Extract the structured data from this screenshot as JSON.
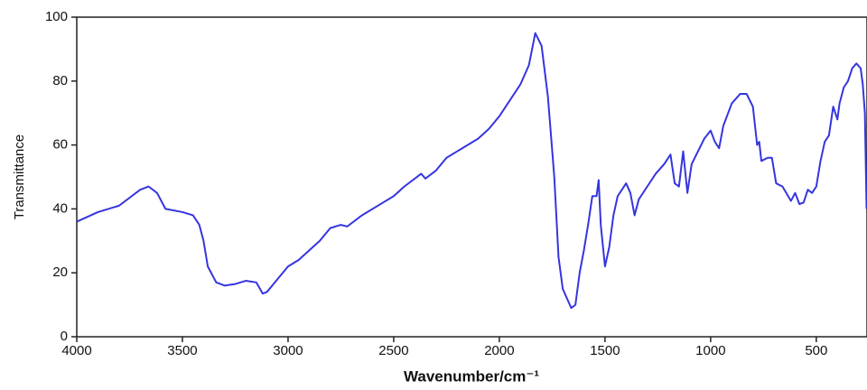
{
  "chart_data": {
    "type": "line",
    "xlabel": "Wavenumber/cm⁻¹",
    "ylabel": "Transmittance",
    "xlim": [
      4000,
      260
    ],
    "xticks": [
      4000,
      3500,
      3000,
      2500,
      2000,
      1500,
      1000,
      500
    ],
    "ylim": [
      0,
      100
    ],
    "yticks": [
      0,
      20,
      40,
      60,
      80,
      100
    ],
    "x": [
      4000,
      3900,
      3800,
      3700,
      3660,
      3620,
      3580,
      3500,
      3450,
      3420,
      3400,
      3380,
      3340,
      3300,
      3250,
      3200,
      3150,
      3120,
      3100,
      3050,
      3000,
      2950,
      2900,
      2850,
      2800,
      2750,
      2720,
      2650,
      2550,
      2500,
      2450,
      2400,
      2370,
      2350,
      2300,
      2250,
      2200,
      2150,
      2100,
      2050,
      2000,
      1950,
      1900,
      1860,
      1830,
      1800,
      1770,
      1740,
      1720,
      1700,
      1680,
      1660,
      1640,
      1620,
      1600,
      1580,
      1560,
      1540,
      1530,
      1520,
      1500,
      1480,
      1460,
      1440,
      1420,
      1400,
      1380,
      1360,
      1340,
      1300,
      1260,
      1220,
      1190,
      1170,
      1150,
      1130,
      1110,
      1090,
      1060,
      1030,
      1000,
      980,
      960,
      940,
      900,
      860,
      830,
      800,
      780,
      770,
      760,
      730,
      710,
      690,
      660,
      620,
      600,
      580,
      560,
      540,
      520,
      500,
      480,
      460,
      440,
      420,
      400,
      390,
      370,
      350,
      330,
      310,
      290,
      280,
      270,
      262
    ],
    "series": [
      {
        "color": "#3535e0",
        "values": [
          36,
          39,
          41,
          46,
          47,
          45,
          40,
          39,
          38,
          35,
          30,
          22,
          17,
          16,
          16.5,
          17.5,
          17,
          13.5,
          14,
          18,
          22,
          24,
          27,
          30,
          34,
          35,
          34.5,
          38,
          42,
          44,
          47,
          49.5,
          51,
          49.5,
          52,
          56,
          58,
          60,
          62,
          65,
          69,
          74,
          79,
          85,
          95,
          91,
          75,
          50,
          25,
          15,
          12,
          9,
          10,
          20,
          27,
          35,
          44,
          44,
          49,
          35,
          22,
          28,
          38,
          44,
          46,
          48,
          45,
          38,
          43,
          47,
          51,
          54,
          57,
          48,
          47,
          58,
          45,
          54,
          58,
          62,
          64.5,
          61,
          59,
          66,
          73,
          76,
          76,
          72,
          60,
          61,
          55,
          56,
          56,
          48,
          47,
          42.5,
          45,
          41.5,
          42,
          46,
          45,
          47,
          55,
          61,
          63,
          72,
          68,
          73,
          78,
          80,
          84,
          85.5,
          84,
          79,
          70,
          40
        ]
      }
    ]
  }
}
